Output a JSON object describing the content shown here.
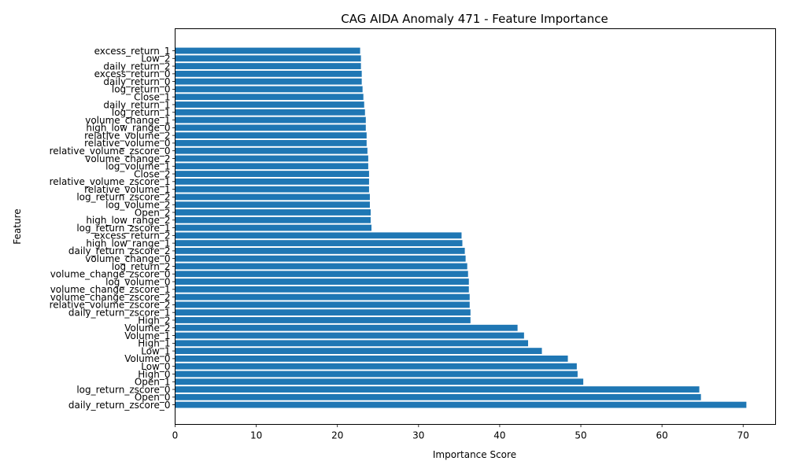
{
  "chart_data": {
    "type": "bar",
    "orientation": "horizontal",
    "title": "CAG AIDA Anomaly 471 - Feature Importance",
    "xlabel": "Importance Score",
    "ylabel": "Feature",
    "xlim": [
      0,
      74
    ],
    "xticks": [
      0,
      10,
      20,
      30,
      40,
      50,
      60,
      70
    ],
    "bar_color": "#1f77b4",
    "grid": false,
    "categories": [
      "daily_return_zscore_0",
      "Open_0",
      "log_return_zscore_0",
      "Open_1",
      "High_0",
      "Low_0",
      "Volume_0",
      "Low_1",
      "High_1",
      "Volume_1",
      "Volume_2",
      "High_2",
      "daily_return_zscore_1",
      "relative_volume_zscore_2",
      "volume_change_zscore_2",
      "volume_change_zscore_1",
      "log_volume_0",
      "volume_change_zscore_0",
      "log_return_2",
      "volume_change_0",
      "daily_return_zscore_2",
      "high_low_range_1",
      "excess_return_2",
      "log_return_zscore_1",
      "high_low_range_2",
      "Open_2",
      "log_volume_2",
      "log_return_zscore_2",
      "relative_volume_1",
      "relative_volume_zscore_1",
      "Close_2",
      "log_volume_1",
      "volume_change_2",
      "relative_volume_zscore_0",
      "relative_volume_0",
      "relative_volume_2",
      "high_low_range_0",
      "volume_change_1",
      "log_return_1",
      "daily_return_1",
      "Close_1",
      "log_return_0",
      "daily_return_0",
      "excess_return_0",
      "daily_return_2",
      "Low_2",
      "excess_return_1"
    ],
    "values": [
      70.4,
      64.8,
      64.6,
      50.3,
      49.6,
      49.5,
      48.4,
      45.2,
      43.5,
      43.0,
      42.2,
      36.4,
      36.4,
      36.3,
      36.3,
      36.2,
      36.2,
      36.1,
      36.0,
      35.8,
      35.7,
      35.4,
      35.3,
      24.2,
      24.1,
      24.1,
      24.0,
      24.0,
      23.9,
      23.9,
      23.9,
      23.8,
      23.8,
      23.7,
      23.6,
      23.6,
      23.5,
      23.5,
      23.4,
      23.3,
      23.2,
      23.1,
      23.0,
      23.0,
      22.9,
      22.9,
      22.8
    ]
  }
}
